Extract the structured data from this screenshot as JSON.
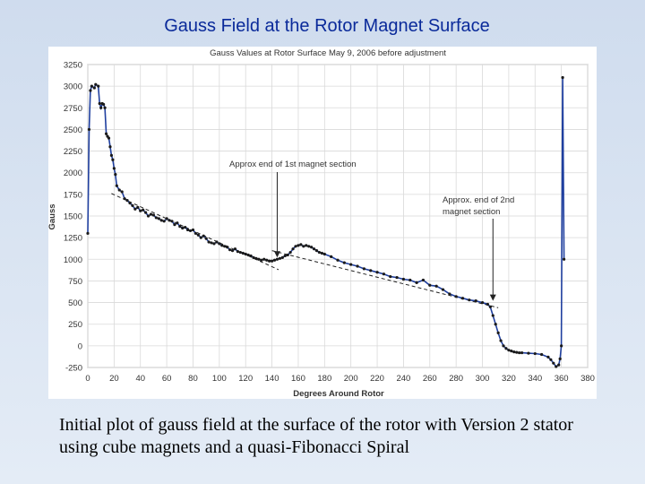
{
  "slide": {
    "title": "Gauss Field at the Rotor Magnet Surface",
    "caption": "Initial plot of gauss field at the surface of the rotor with Version 2 stator using cube magnets and a quasi-Fibonacci Spiral"
  },
  "chart_data": {
    "type": "line",
    "title": "Gauss Values at Rotor Surface   May 9, 2006 before adjustment",
    "xlabel": "Degrees Around Rotor",
    "ylabel": "Gauss",
    "xlim": [
      0,
      380
    ],
    "ylim": [
      -250,
      3250
    ],
    "xticks": [
      0,
      20,
      40,
      60,
      80,
      100,
      120,
      140,
      160,
      180,
      200,
      220,
      240,
      260,
      280,
      300,
      320,
      340,
      360,
      380
    ],
    "yticks": [
      -250,
      0,
      250,
      500,
      750,
      1000,
      1250,
      1500,
      1750,
      2000,
      2250,
      2500,
      2750,
      3000,
      3250
    ],
    "series": [
      {
        "name": "Gauss",
        "color": "#1f3f9f",
        "x": [
          0,
          1,
          2,
          3,
          5,
          6,
          8,
          9,
          10,
          11,
          12,
          13,
          14,
          15,
          16,
          17,
          18,
          19,
          20,
          21,
          22,
          24,
          26,
          28,
          30,
          32,
          34,
          36,
          38,
          40,
          42,
          44,
          46,
          48,
          50,
          52,
          54,
          56,
          58,
          60,
          62,
          64,
          66,
          68,
          70,
          72,
          74,
          76,
          78,
          80,
          82,
          84,
          86,
          88,
          90,
          92,
          94,
          96,
          98,
          100,
          102,
          104,
          106,
          108,
          110,
          112,
          114,
          116,
          118,
          120,
          122,
          124,
          126,
          128,
          130,
          132,
          134,
          136,
          138,
          140,
          142,
          144,
          146,
          148,
          150,
          152,
          154,
          156,
          158,
          160,
          162,
          164,
          166,
          168,
          170,
          172,
          174,
          176,
          178,
          180,
          185,
          190,
          195,
          200,
          205,
          210,
          215,
          220,
          225,
          230,
          235,
          240,
          245,
          250,
          255,
          260,
          265,
          270,
          275,
          280,
          285,
          290,
          295,
          300,
          304,
          306,
          308,
          310,
          312,
          314,
          316,
          318,
          320,
          322,
          324,
          326,
          328,
          330,
          335,
          340,
          345,
          350,
          352,
          354,
          356,
          358,
          359,
          360,
          361,
          362
        ],
        "y": [
          1300,
          2500,
          2950,
          3000,
          2980,
          3020,
          3000,
          2800,
          2750,
          2800,
          2790,
          2750,
          2450,
          2420,
          2400,
          2300,
          2200,
          2150,
          2050,
          1980,
          1850,
          1800,
          1780,
          1700,
          1680,
          1650,
          1620,
          1580,
          1600,
          1560,
          1570,
          1540,
          1500,
          1520,
          1510,
          1480,
          1470,
          1450,
          1440,
          1470,
          1450,
          1440,
          1400,
          1420,
          1380,
          1360,
          1370,
          1340,
          1330,
          1340,
          1300,
          1280,
          1250,
          1270,
          1240,
          1200,
          1190,
          1180,
          1200,
          1180,
          1160,
          1150,
          1140,
          1110,
          1100,
          1120,
          1090,
          1080,
          1070,
          1060,
          1050,
          1040,
          1020,
          1010,
          1000,
          990,
          1000,
          990,
          980,
          980,
          990,
          1000,
          1010,
          1020,
          1040,
          1050,
          1080,
          1120,
          1150,
          1160,
          1170,
          1150,
          1160,
          1150,
          1140,
          1120,
          1100,
          1080,
          1070,
          1060,
          1030,
          990,
          960,
          940,
          920,
          890,
          870,
          850,
          830,
          800,
          790,
          770,
          760,
          730,
          760,
          700,
          690,
          650,
          600,
          570,
          550,
          530,
          520,
          500,
          480,
          450,
          350,
          250,
          150,
          60,
          0,
          -30,
          -50,
          -60,
          -70,
          -75,
          -80,
          -80,
          -85,
          -90,
          -100,
          -130,
          -160,
          -200,
          -240,
          -220,
          -150,
          0,
          3100,
          1000
        ]
      }
    ],
    "trendlines": [
      {
        "name": "trend-1st-section",
        "x": [
          18,
          145
        ],
        "y": [
          1760,
          880
        ]
      },
      {
        "name": "trend-2nd-section",
        "x": [
          140,
          312
        ],
        "y": [
          1100,
          440
        ]
      }
    ],
    "annotations": [
      {
        "text": "Approx end of 1st magnet section",
        "point_x": 144,
        "point_y": 1000
      },
      {
        "text_lines": [
          "Approx. end of 2nd",
          "magnet section"
        ],
        "point_x": 308,
        "point_y": 500
      }
    ]
  }
}
